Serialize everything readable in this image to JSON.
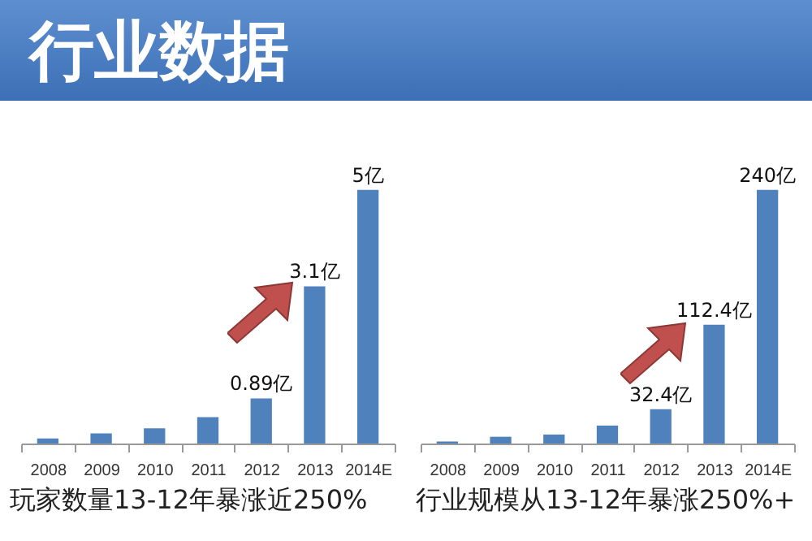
{
  "chart_data": [
    {
      "type": "bar",
      "title": "行业数据",
      "categories": [
        "2008",
        "2009",
        "2010",
        "2011",
        "2012",
        "2013",
        "2014E"
      ],
      "values": [
        0.1,
        0.2,
        0.3,
        0.52,
        0.89,
        3.1,
        5
      ],
      "value_labels": [
        null,
        null,
        null,
        null,
        "0.89亿",
        "3.1亿",
        "5亿"
      ],
      "color": "#4f81bd",
      "annotations": [
        "玩家数量13-12年暴涨近250%"
      ]
    },
    {
      "type": "bar",
      "categories": [
        "2008",
        "2009",
        "2010",
        "2011",
        "2012",
        "2013",
        "2014E"
      ],
      "values": [
        2,
        6.4,
        8.5,
        17,
        32.4,
        112.4,
        240
      ],
      "value_labels": [
        null,
        null,
        null,
        null,
        "32.4亿",
        "112.4亿",
        "240亿"
      ],
      "color": "#4f81bd",
      "annotations": [
        "行业规模从13-12年暴涨250%+"
      ]
    }
  ]
}
